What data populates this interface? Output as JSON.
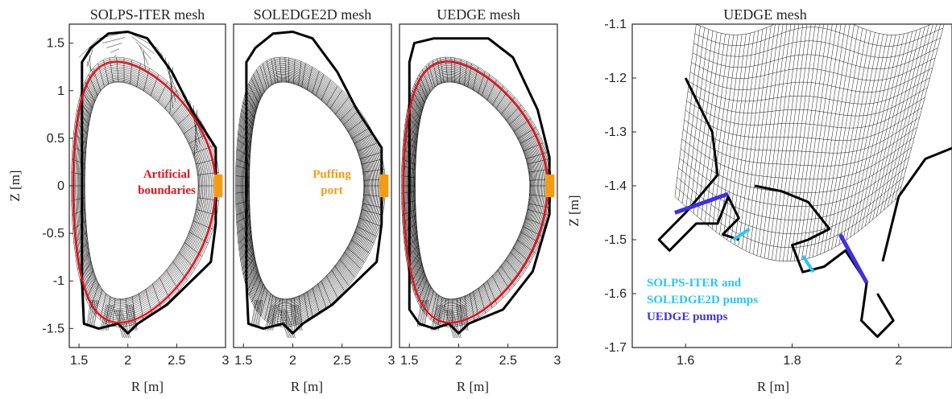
{
  "colors": {
    "artificial_boundary": "#e8111b",
    "puffing_port": "#f39c12",
    "solps_soledge_pumps": "#29c5f6",
    "uedge_pumps": "#3f2fe6"
  },
  "panels": [
    {
      "title": "SOLPS-ITER mesh"
    },
    {
      "title": "SOLEDGE2D mesh"
    },
    {
      "title": "UEDGE mesh"
    },
    {
      "title": "UEDGE mesh"
    }
  ],
  "annotations": {
    "artificial_line1": "Artificial",
    "artificial_line2": "boundaries",
    "puffing_line1": "Puffing",
    "puffing_line2": "port",
    "pumps_line1": "SOLPS-ITER and",
    "pumps_line2": "SOLEDGE2D pumps",
    "pumps_line3": "UEDGE pumps"
  },
  "chart_data": [
    {
      "type": "mesh-plot",
      "title": "SOLPS-ITER mesh",
      "xlabel": "",
      "ylabel": "Z [m]",
      "xlim": [
        1.4,
        3.0
      ],
      "ylim": [
        -1.7,
        1.7
      ],
      "xticks": [
        "1.5",
        "2",
        "2.5",
        "3"
      ],
      "yticks": [
        "1.5",
        "1",
        "0.5",
        "0",
        "-0.5",
        "-1",
        "-1.5"
      ]
    },
    {
      "type": "mesh-plot",
      "title": "SOLEDGE2D mesh",
      "xlabel": "R [m]",
      "ylabel": "",
      "xlim": [
        1.4,
        3.0
      ],
      "ylim": [
        -1.7,
        1.7
      ],
      "xticks": [
        "1.5",
        "2",
        "2.5",
        "3"
      ]
    },
    {
      "type": "mesh-plot",
      "title": "UEDGE mesh",
      "xlabel": "R [m]",
      "ylabel": "",
      "xlim": [
        1.4,
        3.0
      ],
      "ylim": [
        -1.7,
        1.7
      ],
      "xticks": [
        "1.5",
        "2",
        "2.5",
        "3"
      ]
    },
    {
      "type": "mesh-plot",
      "title": "UEDGE mesh",
      "xlabel": "R [m]",
      "ylabel": "Z [m]",
      "xlim": [
        1.5,
        2.1
      ],
      "ylim": [
        -1.7,
        -1.1
      ],
      "xticks": [
        "1.6",
        "1.8",
        "2"
      ],
      "yticks": [
        "-1.1",
        "-1.2",
        "-1.3",
        "-1.4",
        "-1.5",
        "-1.6",
        "-1.7"
      ]
    }
  ],
  "labels": {
    "left_xlabel": "R [m]",
    "left_ylabel": "Z [m]",
    "right_xlabel": "R [m]",
    "right_ylabel": "Z [m]"
  }
}
